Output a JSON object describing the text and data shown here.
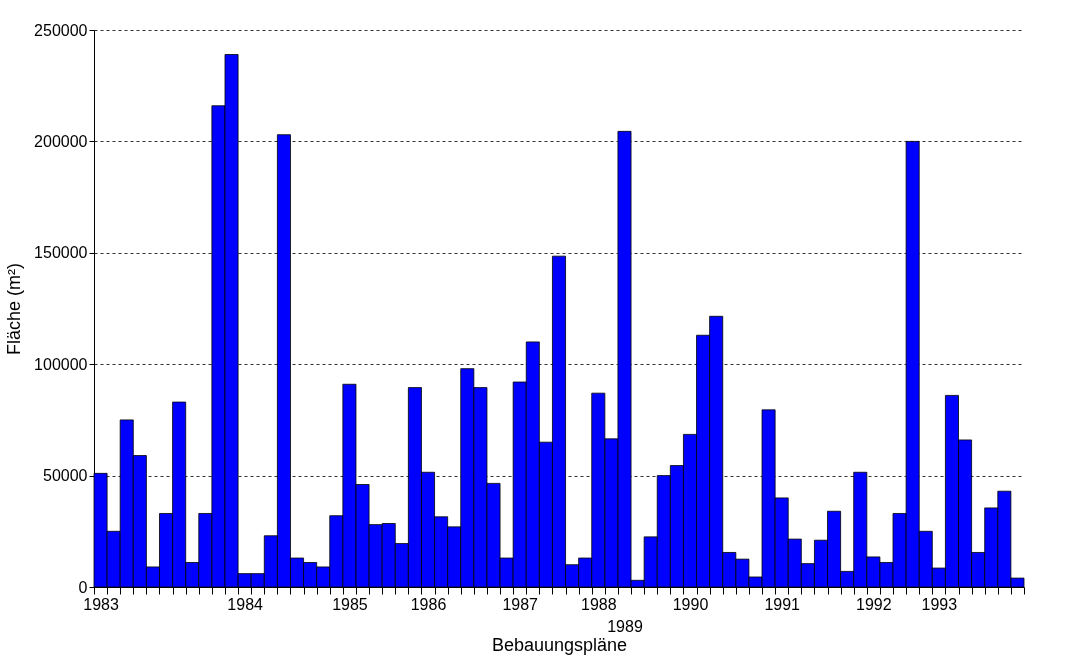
{
  "chart_data": {
    "type": "bar",
    "xlabel": "Bebauungspläne",
    "ylabel": "Fläche (m²)",
    "categories": [
      "1983",
      null,
      null,
      null,
      null,
      null,
      null,
      null,
      null,
      null,
      null,
      "1984",
      null,
      null,
      null,
      null,
      null,
      null,
      null,
      "1985",
      null,
      null,
      null,
      null,
      null,
      "1986",
      null,
      null,
      null,
      null,
      null,
      null,
      "1987",
      null,
      null,
      null,
      null,
      null,
      "1988",
      null,
      "1989",
      null,
      null,
      null,
      null,
      "1990",
      null,
      null,
      null,
      null,
      null,
      null,
      "1991",
      null,
      null,
      null,
      null,
      null,
      null,
      "1992",
      null,
      null,
      null,
      null,
      "1993",
      null,
      null,
      null,
      null,
      null,
      null
    ],
    "values": [
      51000,
      25000,
      75000,
      59000,
      9000,
      33000,
      83000,
      11000,
      33000,
      216000,
      239000,
      6000,
      6000,
      23000,
      203000,
      13000,
      11000,
      9000,
      32000,
      91000,
      46000,
      28000,
      28500,
      19500,
      89500,
      51500,
      31500,
      27000,
      98000,
      89500,
      46500,
      13000,
      92000,
      110000,
      65000,
      148500,
      10000,
      13000,
      87000,
      66500,
      204500,
      3000,
      22500,
      50000,
      54500,
      68500,
      113000,
      121500,
      15500,
      12500,
      4500,
      79500,
      40000,
      21500,
      10500,
      21000,
      34000,
      7000,
      51500,
      13500,
      11000,
      33000,
      200000,
      25000,
      8500,
      86000,
      66000,
      15500,
      35500,
      43000,
      4000
    ],
    "color": "#0000ff",
    "ylim": [
      0,
      250000
    ],
    "yticks": [
      0,
      50000,
      100000,
      150000,
      200000,
      250000
    ],
    "grid": "y"
  }
}
